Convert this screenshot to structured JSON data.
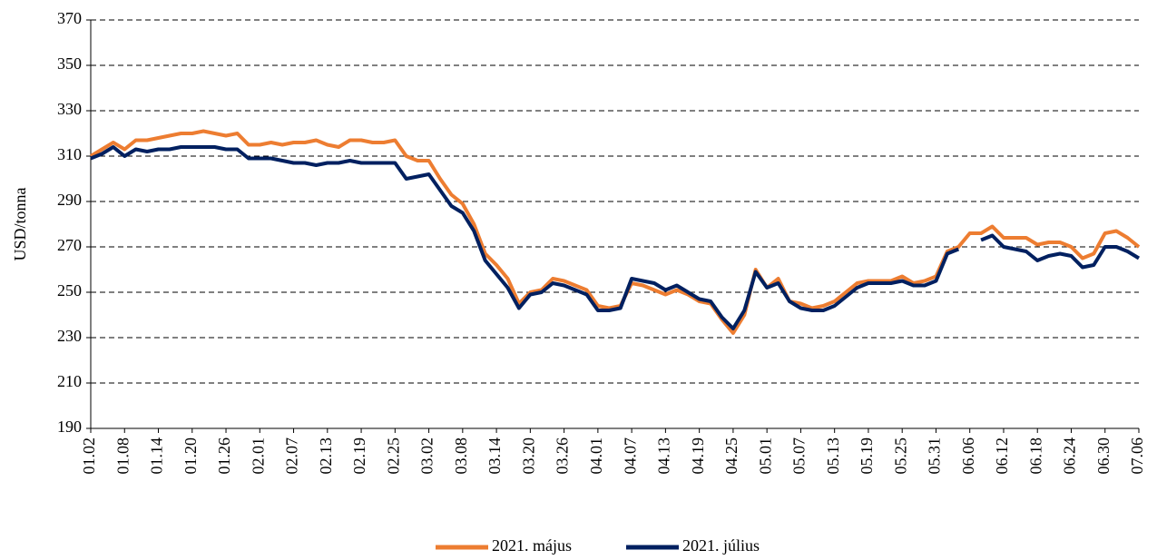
{
  "chart_data": {
    "type": "line",
    "ylabel": "USD/tonna",
    "categories": [
      "01.02",
      null,
      null,
      "01.08",
      null,
      null,
      "01.14",
      null,
      null,
      "01.20",
      null,
      null,
      "01.26",
      null,
      null,
      "02.01",
      null,
      null,
      "02.07",
      null,
      null,
      "02.13",
      null,
      null,
      "02.19",
      null,
      null,
      "02.25",
      null,
      null,
      "03.02",
      null,
      null,
      "03.08",
      null,
      null,
      "03.14",
      null,
      null,
      "03.20",
      null,
      null,
      "03.26",
      null,
      null,
      "04.01",
      null,
      null,
      "04.07",
      null,
      null,
      "04.13",
      null,
      null,
      "04.19",
      null,
      null,
      "04.25",
      null,
      null,
      "05.01",
      null,
      null,
      "05.07",
      null,
      null,
      "05.13",
      null,
      null,
      "05.19",
      null,
      null,
      "05.25",
      null,
      null,
      "05.31",
      null,
      null,
      "06.06",
      null,
      null,
      "06.12",
      null,
      null,
      "06.18",
      null,
      null,
      "06.24",
      null,
      null,
      "06.30",
      null,
      null,
      "07.06"
    ],
    "series": [
      {
        "name": "2021. május",
        "color": "#ed7d31",
        "values": [
          310,
          313,
          316,
          313,
          317,
          317,
          318,
          319,
          320,
          320,
          321,
          320,
          319,
          320,
          315,
          315,
          316,
          315,
          316,
          316,
          317,
          315,
          314,
          317,
          317,
          316,
          316,
          317,
          310,
          308,
          308,
          300,
          293,
          289,
          280,
          267,
          262,
          256,
          245,
          250,
          251,
          256,
          255,
          253,
          251,
          244,
          243,
          244,
          254,
          253,
          251,
          249,
          251,
          249,
          246,
          245,
          238,
          232,
          240,
          260,
          252,
          256,
          246,
          245,
          243,
          244,
          246,
          250,
          254,
          255,
          255,
          255,
          257,
          254,
          255,
          257,
          268,
          270,
          276,
          276,
          279,
          274,
          274,
          274,
          271,
          272,
          272,
          270,
          265,
          267,
          276,
          277,
          274,
          270
        ]
      },
      {
        "name": "2021. július",
        "color": "#002060",
        "values": [
          309,
          311,
          314,
          310,
          313,
          312,
          313,
          313,
          314,
          314,
          314,
          314,
          313,
          313,
          309,
          309,
          309,
          308,
          307,
          307,
          306,
          307,
          307,
          308,
          307,
          307,
          307,
          307,
          300,
          301,
          302,
          295,
          288,
          285,
          277,
          264,
          258,
          252,
          243,
          249,
          250,
          254,
          253,
          251,
          249,
          242,
          242,
          243,
          256,
          255,
          254,
          251,
          253,
          250,
          247,
          246,
          239,
          234,
          242,
          259,
          252,
          254,
          246,
          243,
          242,
          242,
          244,
          248,
          252,
          254,
          254,
          254,
          255,
          253,
          253,
          255,
          267,
          269,
          null,
          273,
          275,
          270,
          269,
          268,
          264,
          266,
          267,
          266,
          261,
          262,
          270,
          270,
          268,
          265
        ]
      }
    ],
    "ylim": [
      190,
      370
    ],
    "yticks": [
      190,
      210,
      230,
      250,
      270,
      290,
      310,
      330,
      350,
      370
    ],
    "grid": true,
    "legend": "bottom"
  }
}
